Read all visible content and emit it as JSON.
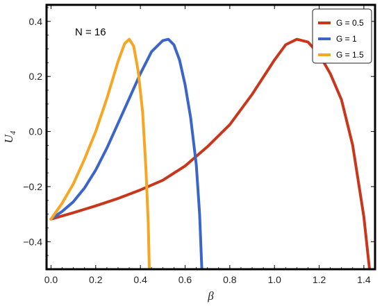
{
  "chart_data": {
    "type": "line",
    "xlabel": "β",
    "ylabel": "U",
    "ylabel_subscript": "4",
    "annotation": "N = 16",
    "xlim": [
      -0.02,
      1.45
    ],
    "ylim": [
      -0.5,
      0.46
    ],
    "x_ticks": [
      0.0,
      0.2,
      0.4,
      0.6,
      0.8,
      1.0,
      1.2,
      1.4
    ],
    "x_tick_labels": [
      "0.0",
      "0.2",
      "0.4",
      "0.6",
      "0.8",
      "1.0",
      "1.2",
      "1.4"
    ],
    "y_ticks": [
      -0.4,
      -0.2,
      0.0,
      0.2,
      0.4
    ],
    "y_tick_labels": [
      "−0.4",
      "−0.2",
      "0.0",
      "0.2",
      "0.4"
    ],
    "grid": false,
    "legend_position": "top-right",
    "series": [
      {
        "name": "G = 0.5",
        "color": "#c8371b",
        "points": [
          [
            0.0,
            -0.318
          ],
          [
            0.1,
            -0.295
          ],
          [
            0.2,
            -0.27
          ],
          [
            0.3,
            -0.243
          ],
          [
            0.4,
            -0.212
          ],
          [
            0.5,
            -0.177
          ],
          [
            0.6,
            -0.125
          ],
          [
            0.7,
            -0.055
          ],
          [
            0.8,
            0.025
          ],
          [
            0.9,
            0.135
          ],
          [
            1.0,
            0.26
          ],
          [
            1.05,
            0.315
          ],
          [
            1.1,
            0.335
          ],
          [
            1.15,
            0.325
          ],
          [
            1.2,
            0.28
          ],
          [
            1.25,
            0.21
          ],
          [
            1.3,
            0.115
          ],
          [
            1.35,
            -0.05
          ],
          [
            1.4,
            -0.31
          ],
          [
            1.425,
            -0.5
          ]
        ]
      },
      {
        "name": "G = 1",
        "color": "#3b65c8",
        "points": [
          [
            0.0,
            -0.318
          ],
          [
            0.05,
            -0.29
          ],
          [
            0.1,
            -0.255
          ],
          [
            0.15,
            -0.205
          ],
          [
            0.2,
            -0.14
          ],
          [
            0.25,
            -0.06
          ],
          [
            0.3,
            0.03
          ],
          [
            0.35,
            0.12
          ],
          [
            0.4,
            0.21
          ],
          [
            0.45,
            0.29
          ],
          [
            0.5,
            0.33
          ],
          [
            0.525,
            0.335
          ],
          [
            0.55,
            0.315
          ],
          [
            0.575,
            0.26
          ],
          [
            0.6,
            0.17
          ],
          [
            0.625,
            0.05
          ],
          [
            0.65,
            -0.12
          ],
          [
            0.665,
            -0.3
          ],
          [
            0.675,
            -0.5
          ]
        ]
      },
      {
        "name": "G = 1.5",
        "color": "#f6a623",
        "points": [
          [
            0.0,
            -0.318
          ],
          [
            0.05,
            -0.26
          ],
          [
            0.1,
            -0.19
          ],
          [
            0.15,
            -0.1
          ],
          [
            0.2,
            0.0
          ],
          [
            0.25,
            0.12
          ],
          [
            0.3,
            0.255
          ],
          [
            0.33,
            0.32
          ],
          [
            0.35,
            0.335
          ],
          [
            0.37,
            0.31
          ],
          [
            0.39,
            0.22
          ],
          [
            0.41,
            0.07
          ],
          [
            0.425,
            -0.14
          ],
          [
            0.435,
            -0.33
          ],
          [
            0.44,
            -0.5
          ]
        ]
      }
    ]
  }
}
